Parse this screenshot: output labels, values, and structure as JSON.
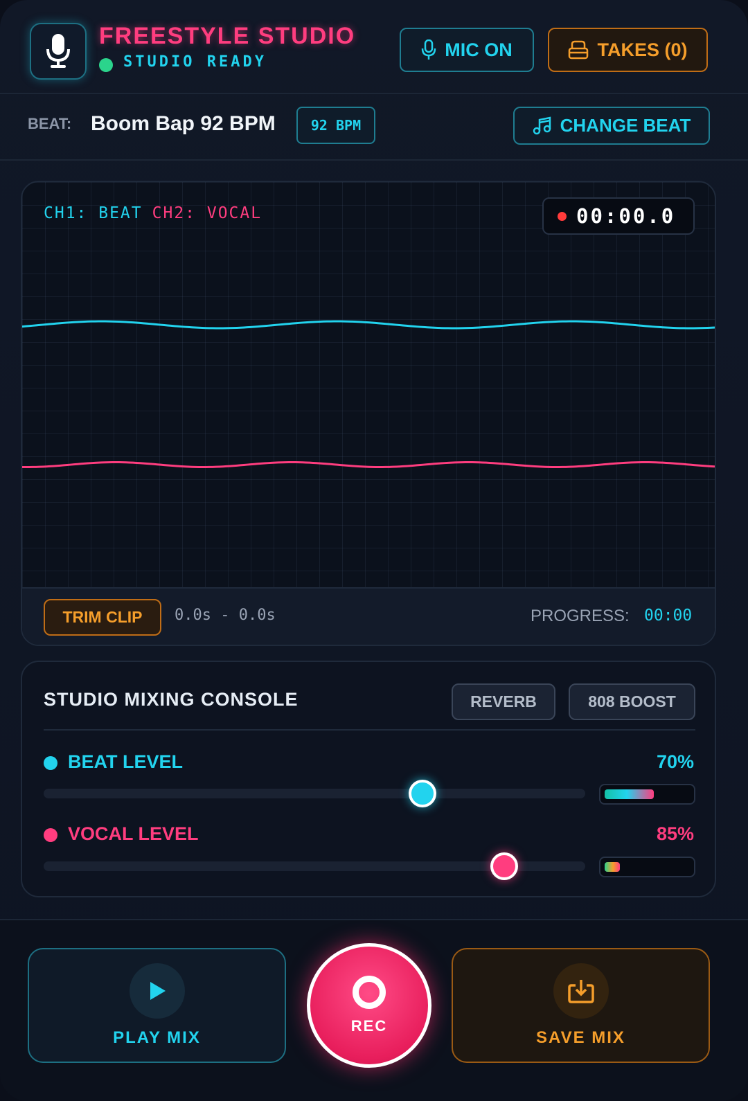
{
  "header": {
    "title": "FREESTYLE STUDIO",
    "status": "STUDIO READY",
    "mic_button": "MIC ON",
    "takes_button": "TAKES (0)"
  },
  "beat": {
    "label": "BEAT:",
    "name": "Boom Bap 92 BPM",
    "bpm_badge": "92 BPM",
    "change_button": "CHANGE BEAT"
  },
  "scope": {
    "ch1_label": "CH1: BEAT",
    "ch2_label": "CH2: VOCAL",
    "timer": "00:00.0",
    "trim_button": "TRIM CLIP",
    "trim_range": "0.0s - 0.0s",
    "progress_label": "PROGRESS:",
    "progress_value": "00:00"
  },
  "mixer": {
    "title": "STUDIO MIXING CONSOLE",
    "reverb_button": "REVERB",
    "boost_button": "808 BOOST",
    "beat": {
      "label": "BEAT LEVEL",
      "value_text": "70%",
      "value": 0.7,
      "meter": 0.58
    },
    "vocal": {
      "label": "VOCAL LEVEL",
      "value_text": "85%",
      "value": 0.85,
      "meter": 0.18
    }
  },
  "controls": {
    "play_label": "PLAY MIX",
    "rec_label": "REC",
    "save_label": "SAVE MIX"
  },
  "colors": {
    "accent_cyan": "#22d3ee",
    "accent_pink": "#ff3d7f",
    "accent_orange": "#f59e2b",
    "status_green": "#2bd48c"
  },
  "icons": {
    "logo": "microphone-icon",
    "mic": "microphone-icon",
    "takes": "archive-icon",
    "beat": "music-note-icon",
    "play": "play-icon",
    "rec": "record-icon",
    "save": "download-icon"
  }
}
